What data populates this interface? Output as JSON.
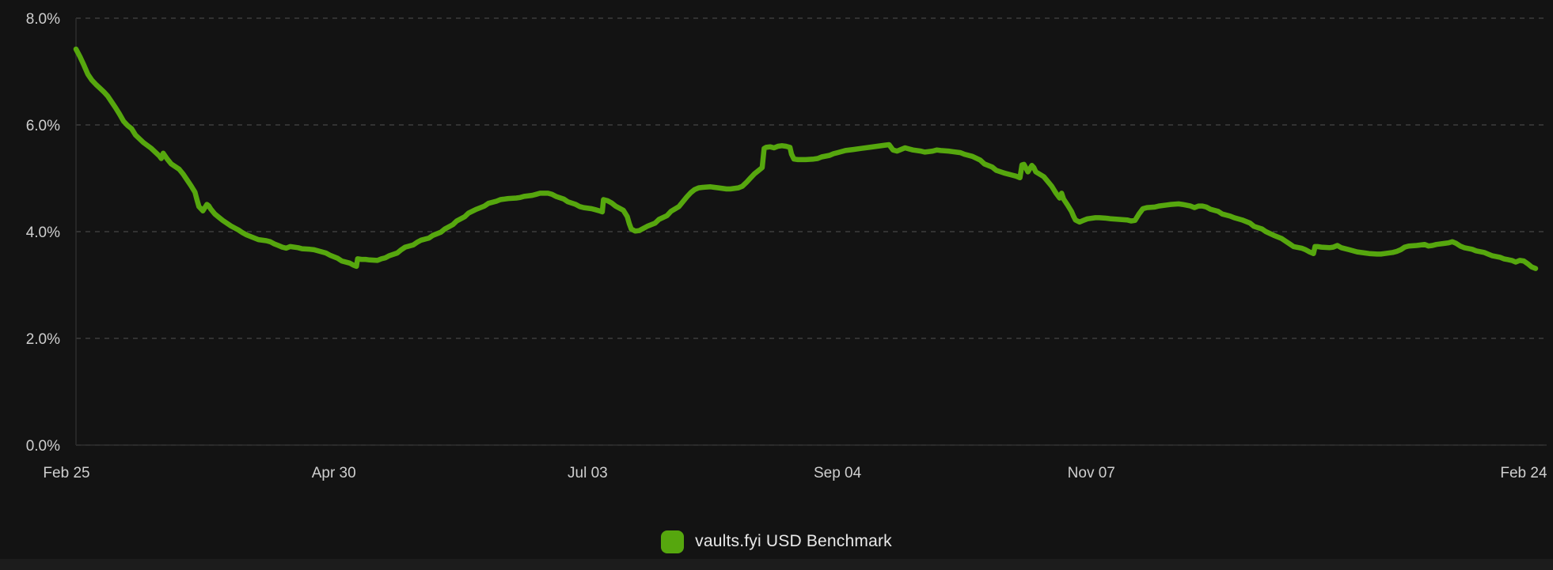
{
  "legend": {
    "label": "vaults.fyi USD Benchmark"
  },
  "colors": {
    "background": "#131313",
    "grid": "#3d3d3d",
    "axis": "#2e2e2e",
    "tick_label": "#cfcfcf",
    "legend_text": "#e9e9e9",
    "accent": "#56a70e",
    "footer_strip": "#1c1c1c"
  },
  "chart_data": {
    "type": "line",
    "title": "",
    "xlabel": "",
    "ylabel": "",
    "grid": "horizontal-dashed",
    "legend_position": "bottom-center",
    "y_unit": "%",
    "ylim": [
      0,
      8
    ],
    "x_range_days": [
      0,
      368
    ],
    "y_ticks": [
      {
        "label": "0.0%",
        "value": 0
      },
      {
        "label": "2.0%",
        "value": 2
      },
      {
        "label": "4.0%",
        "value": 4
      },
      {
        "label": "6.0%",
        "value": 6
      },
      {
        "label": "8.0%",
        "value": 8
      }
    ],
    "x_ticks": [
      {
        "label": "Feb 25",
        "day": 0,
        "dx": -12
      },
      {
        "label": "Apr 30",
        "day": 65,
        "dx": 0
      },
      {
        "label": "Jul 03",
        "day": 129,
        "dx": 0
      },
      {
        "label": "Sep 04",
        "day": 192,
        "dx": 0
      },
      {
        "label": "Nov 07",
        "day": 256,
        "dx": 0
      },
      {
        "label": "Feb 24",
        "day": 365,
        "dx": 0
      }
    ],
    "series": [
      {
        "name": "vaults.fyi USD Benchmark",
        "color": "#56a70e",
        "points": [
          [
            0,
            7.42
          ],
          [
            1,
            7.28
          ],
          [
            2,
            7.12
          ],
          [
            3,
            6.95
          ],
          [
            4,
            6.84
          ],
          [
            5,
            6.76
          ],
          [
            6,
            6.69
          ],
          [
            7,
            6.62
          ],
          [
            8,
            6.54
          ],
          [
            9,
            6.43
          ],
          [
            10,
            6.32
          ],
          [
            11,
            6.2
          ],
          [
            12,
            6.07
          ],
          [
            13,
            5.99
          ],
          [
            14,
            5.93
          ],
          [
            15,
            5.81
          ],
          [
            17,
            5.67
          ],
          [
            19,
            5.56
          ],
          [
            21,
            5.42
          ],
          [
            21.5,
            5.37
          ],
          [
            22,
            5.47
          ],
          [
            23,
            5.36
          ],
          [
            24,
            5.27
          ],
          [
            26,
            5.17
          ],
          [
            27,
            5.08
          ],
          [
            28,
            4.97
          ],
          [
            29,
            4.86
          ],
          [
            30,
            4.74
          ],
          [
            30.5,
            4.6
          ],
          [
            31,
            4.47
          ],
          [
            32,
            4.39
          ],
          [
            33,
            4.51
          ],
          [
            33.5,
            4.48
          ],
          [
            34,
            4.42
          ],
          [
            35,
            4.33
          ],
          [
            36,
            4.27
          ],
          [
            37,
            4.21
          ],
          [
            38,
            4.16
          ],
          [
            39,
            4.11
          ],
          [
            40,
            4.07
          ],
          [
            41,
            4.03
          ],
          [
            42,
            3.98
          ],
          [
            43,
            3.94
          ],
          [
            44,
            3.91
          ],
          [
            45,
            3.88
          ],
          [
            46,
            3.85
          ],
          [
            48,
            3.83
          ],
          [
            49,
            3.81
          ],
          [
            50,
            3.77
          ],
          [
            51,
            3.74
          ],
          [
            52,
            3.71
          ],
          [
            53,
            3.69
          ],
          [
            54,
            3.72
          ],
          [
            56,
            3.7
          ],
          [
            57,
            3.68
          ],
          [
            59,
            3.67
          ],
          [
            60,
            3.66
          ],
          [
            61,
            3.64
          ],
          [
            63,
            3.6
          ],
          [
            64,
            3.56
          ],
          [
            66,
            3.5
          ],
          [
            67,
            3.45
          ],
          [
            69,
            3.41
          ],
          [
            70,
            3.37
          ],
          [
            70.7,
            3.35
          ],
          [
            71,
            3.49
          ],
          [
            72,
            3.48
          ],
          [
            73,
            3.48
          ],
          [
            74,
            3.47
          ],
          [
            76,
            3.46
          ],
          [
            77,
            3.49
          ],
          [
            78,
            3.51
          ],
          [
            79,
            3.55
          ],
          [
            81,
            3.6
          ],
          [
            82,
            3.66
          ],
          [
            83,
            3.71
          ],
          [
            85,
            3.75
          ],
          [
            86,
            3.8
          ],
          [
            87,
            3.84
          ],
          [
            89,
            3.88
          ],
          [
            90,
            3.93
          ],
          [
            92,
            3.99
          ],
          [
            93,
            4.05
          ],
          [
            95,
            4.13
          ],
          [
            96,
            4.2
          ],
          [
            98,
            4.28
          ],
          [
            99,
            4.35
          ],
          [
            101,
            4.42
          ],
          [
            103,
            4.48
          ],
          [
            104,
            4.53
          ],
          [
            106,
            4.57
          ],
          [
            107,
            4.6
          ],
          [
            109,
            4.62
          ],
          [
            111,
            4.63
          ],
          [
            112,
            4.64
          ],
          [
            113,
            4.66
          ],
          [
            115,
            4.68
          ],
          [
            116,
            4.7
          ],
          [
            117,
            4.72
          ],
          [
            119,
            4.72
          ],
          [
            120,
            4.7
          ],
          [
            121,
            4.66
          ],
          [
            123,
            4.61
          ],
          [
            124,
            4.56
          ],
          [
            126,
            4.51
          ],
          [
            127,
            4.47
          ],
          [
            128,
            4.45
          ],
          [
            130,
            4.43
          ],
          [
            131,
            4.41
          ],
          [
            132,
            4.39
          ],
          [
            132.7,
            4.37
          ],
          [
            133,
            4.6
          ],
          [
            134,
            4.58
          ],
          [
            135,
            4.54
          ],
          [
            136,
            4.48
          ],
          [
            138,
            4.4
          ],
          [
            139,
            4.28
          ],
          [
            139.5,
            4.15
          ],
          [
            140,
            4.05
          ],
          [
            141,
            4.01
          ],
          [
            142,
            4.02
          ],
          [
            143,
            4.06
          ],
          [
            144,
            4.1
          ],
          [
            146,
            4.16
          ],
          [
            147,
            4.23
          ],
          [
            149,
            4.3
          ],
          [
            150,
            4.38
          ],
          [
            152,
            4.47
          ],
          [
            153,
            4.56
          ],
          [
            154,
            4.65
          ],
          [
            155,
            4.73
          ],
          [
            156,
            4.79
          ],
          [
            157,
            4.82
          ],
          [
            158,
            4.83
          ],
          [
            160,
            4.84
          ],
          [
            161,
            4.83
          ],
          [
            162,
            4.82
          ],
          [
            164,
            4.8
          ],
          [
            165,
            4.8
          ],
          [
            167,
            4.82
          ],
          [
            168,
            4.85
          ],
          [
            169,
            4.92
          ],
          [
            170,
            5.0
          ],
          [
            171,
            5.08
          ],
          [
            172,
            5.14
          ],
          [
            173,
            5.2
          ],
          [
            173.5,
            5.56
          ],
          [
            174,
            5.58
          ],
          [
            175,
            5.59
          ],
          [
            176,
            5.57
          ],
          [
            177,
            5.6
          ],
          [
            178,
            5.61
          ],
          [
            179,
            5.6
          ],
          [
            180,
            5.58
          ],
          [
            180.4,
            5.45
          ],
          [
            181,
            5.36
          ],
          [
            182,
            5.35
          ],
          [
            183,
            5.35
          ],
          [
            184,
            5.35
          ],
          [
            186,
            5.36
          ],
          [
            187,
            5.37
          ],
          [
            188,
            5.4
          ],
          [
            190,
            5.43
          ],
          [
            191,
            5.46
          ],
          [
            192,
            5.48
          ],
          [
            194,
            5.52
          ],
          [
            196,
            5.54
          ],
          [
            198,
            5.56
          ],
          [
            200,
            5.58
          ],
          [
            202,
            5.6
          ],
          [
            204,
            5.62
          ],
          [
            205,
            5.63
          ],
          [
            206,
            5.53
          ],
          [
            207,
            5.51
          ],
          [
            209,
            5.57
          ],
          [
            210,
            5.55
          ],
          [
            211,
            5.53
          ],
          [
            213,
            5.51
          ],
          [
            214,
            5.49
          ],
          [
            216,
            5.51
          ],
          [
            217,
            5.53
          ],
          [
            218,
            5.52
          ],
          [
            220,
            5.51
          ],
          [
            221,
            5.5
          ],
          [
            223,
            5.48
          ],
          [
            224,
            5.45
          ],
          [
            226,
            5.41
          ],
          [
            228,
            5.34
          ],
          [
            229,
            5.27
          ],
          [
            231,
            5.21
          ],
          [
            232,
            5.15
          ],
          [
            234,
            5.1
          ],
          [
            236,
            5.06
          ],
          [
            237,
            5.04
          ],
          [
            238,
            5.01
          ],
          [
            238.5,
            5.25
          ],
          [
            239,
            5.26
          ],
          [
            240,
            5.12
          ],
          [
            241,
            5.24
          ],
          [
            241.5,
            5.2
          ],
          [
            242,
            5.12
          ],
          [
            244,
            5.03
          ],
          [
            245,
            4.94
          ],
          [
            246,
            4.85
          ],
          [
            247,
            4.73
          ],
          [
            248,
            4.63
          ],
          [
            248.5,
            4.72
          ],
          [
            249,
            4.61
          ],
          [
            250,
            4.5
          ],
          [
            251,
            4.38
          ],
          [
            251.5,
            4.29
          ],
          [
            252,
            4.22
          ],
          [
            253,
            4.18
          ],
          [
            254,
            4.21
          ],
          [
            255,
            4.24
          ],
          [
            257,
            4.26
          ],
          [
            258,
            4.26
          ],
          [
            260,
            4.25
          ],
          [
            261,
            4.24
          ],
          [
            263,
            4.23
          ],
          [
            265,
            4.22
          ],
          [
            266,
            4.2
          ],
          [
            267,
            4.21
          ],
          [
            268,
            4.33
          ],
          [
            269,
            4.43
          ],
          [
            270,
            4.45
          ],
          [
            272,
            4.46
          ],
          [
            273,
            4.48
          ],
          [
            275,
            4.5
          ],
          [
            276,
            4.51
          ],
          [
            278,
            4.52
          ],
          [
            279,
            4.51
          ],
          [
            281,
            4.48
          ],
          [
            282,
            4.45
          ],
          [
            283,
            4.48
          ],
          [
            284,
            4.48
          ],
          [
            285,
            4.46
          ],
          [
            286,
            4.42
          ],
          [
            288,
            4.38
          ],
          [
            289,
            4.33
          ],
          [
            291,
            4.29
          ],
          [
            292,
            4.26
          ],
          [
            294,
            4.22
          ],
          [
            296,
            4.16
          ],
          [
            297,
            4.1
          ],
          [
            299,
            4.05
          ],
          [
            300,
            4.0
          ],
          [
            302,
            3.93
          ],
          [
            304,
            3.87
          ],
          [
            305,
            3.82
          ],
          [
            306,
            3.77
          ],
          [
            307,
            3.72
          ],
          [
            309,
            3.69
          ],
          [
            310,
            3.66
          ],
          [
            311,
            3.62
          ],
          [
            312,
            3.59
          ],
          [
            312.4,
            3.72
          ],
          [
            313,
            3.72
          ],
          [
            314,
            3.71
          ],
          [
            316,
            3.7
          ],
          [
            317,
            3.71
          ],
          [
            318,
            3.74
          ],
          [
            319,
            3.7
          ],
          [
            321,
            3.66
          ],
          [
            322,
            3.64
          ],
          [
            323,
            3.62
          ],
          [
            325,
            3.6
          ],
          [
            326,
            3.59
          ],
          [
            328,
            3.58
          ],
          [
            329,
            3.58
          ],
          [
            330,
            3.59
          ],
          [
            332,
            3.61
          ],
          [
            333,
            3.63
          ],
          [
            334,
            3.66
          ],
          [
            335,
            3.71
          ],
          [
            336,
            3.73
          ],
          [
            338,
            3.74
          ],
          [
            339,
            3.75
          ],
          [
            340,
            3.76
          ],
          [
            341,
            3.73
          ],
          [
            342,
            3.74
          ],
          [
            343,
            3.76
          ],
          [
            345,
            3.78
          ],
          [
            346,
            3.79
          ],
          [
            347,
            3.81
          ],
          [
            348,
            3.78
          ],
          [
            349,
            3.73
          ],
          [
            350,
            3.7
          ],
          [
            352,
            3.67
          ],
          [
            353,
            3.64
          ],
          [
            355,
            3.61
          ],
          [
            356,
            3.58
          ],
          [
            357,
            3.55
          ],
          [
            359,
            3.52
          ],
          [
            360,
            3.49
          ],
          [
            362,
            3.46
          ],
          [
            363,
            3.43
          ],
          [
            364,
            3.46
          ],
          [
            365,
            3.45
          ],
          [
            366,
            3.4
          ],
          [
            367,
            3.34
          ],
          [
            368,
            3.31
          ]
        ]
      }
    ]
  }
}
